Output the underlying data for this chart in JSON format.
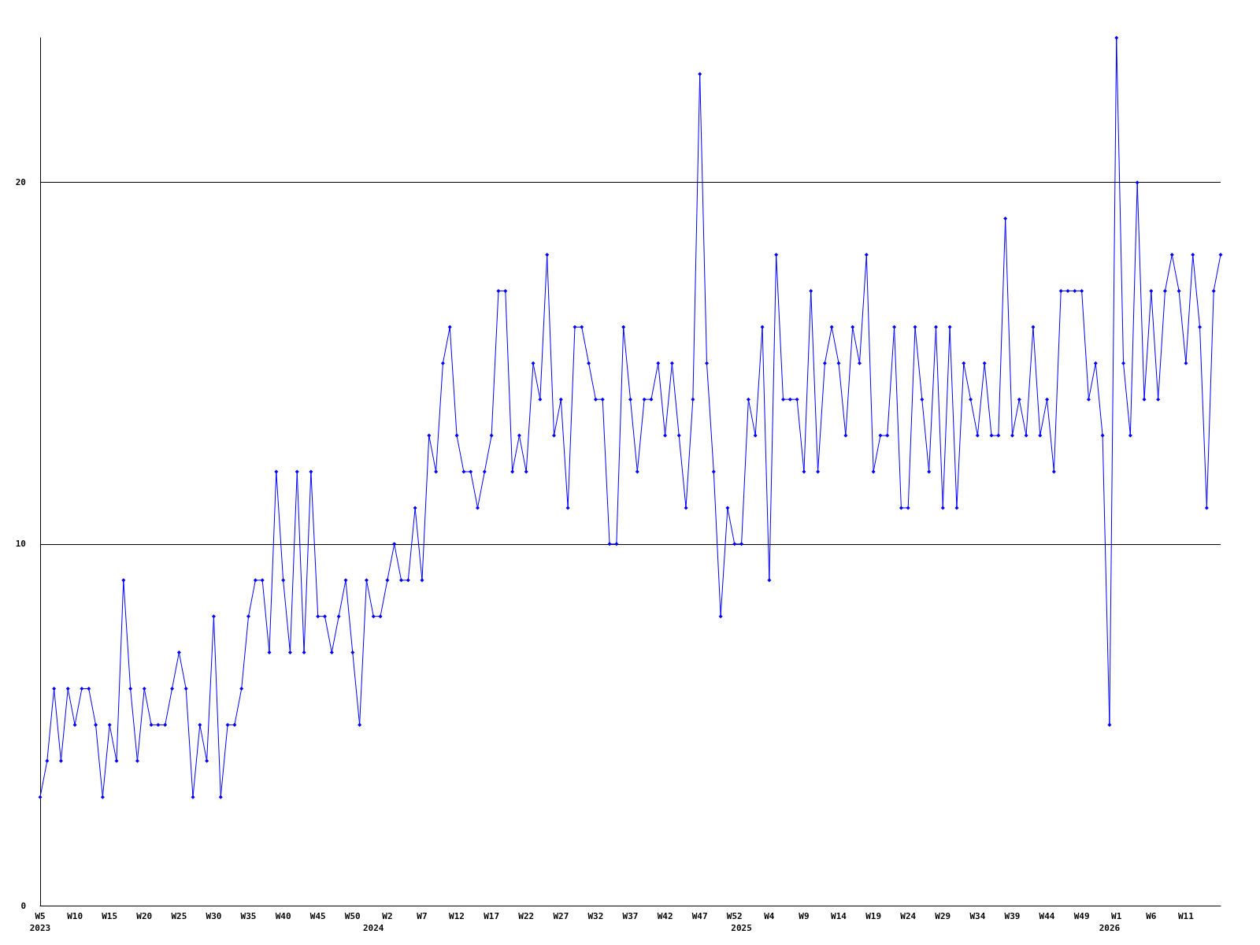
{
  "chart_data": {
    "type": "line",
    "categories": [
      "W5\n2023",
      null,
      null,
      null,
      null,
      "W10",
      null,
      null,
      null,
      null,
      "W15",
      null,
      null,
      null,
      null,
      "W20",
      null,
      null,
      null,
      null,
      "W25",
      null,
      null,
      null,
      null,
      "W30",
      null,
      null,
      null,
      null,
      "W35",
      null,
      null,
      null,
      null,
      "W40",
      null,
      null,
      null,
      null,
      "W45",
      null,
      null,
      null,
      null,
      "W50",
      null,
      null,
      "\n2024",
      null,
      "W2",
      null,
      null,
      null,
      null,
      "W7",
      null,
      null,
      null,
      null,
      "W12",
      null,
      null,
      null,
      null,
      "W17",
      null,
      null,
      null,
      null,
      "W22",
      null,
      null,
      null,
      null,
      "W27",
      null,
      null,
      null,
      null,
      "W32",
      null,
      null,
      null,
      null,
      "W37",
      null,
      null,
      null,
      null,
      "W42",
      null,
      null,
      null,
      null,
      "W47",
      null,
      null,
      null,
      null,
      "W52",
      "\n2025",
      null,
      null,
      null,
      "W4",
      null,
      null,
      null,
      null,
      "W9",
      null,
      null,
      null,
      null,
      "W14",
      null,
      null,
      null,
      null,
      "W19",
      null,
      null,
      null,
      null,
      "W24",
      null,
      null,
      null,
      null,
      "W29",
      null,
      null,
      null,
      null,
      "W34",
      null,
      null,
      null,
      null,
      "W39",
      null,
      null,
      null,
      null,
      "W44",
      null,
      null,
      null,
      null,
      "W49",
      null,
      null,
      null,
      "\n2026",
      "W1",
      null,
      null,
      null,
      null,
      "W6",
      null,
      null,
      null,
      null,
      "W11",
      null,
      null,
      null,
      null,
      null
    ],
    "series": [
      {
        "color": "#0000ff",
        "values": [
          3,
          4,
          6,
          4,
          6,
          5,
          6,
          6,
          5,
          3,
          5,
          4,
          9,
          6,
          4,
          6,
          5,
          5,
          5,
          6,
          7,
          6,
          3,
          5,
          4,
          8,
          3,
          5,
          5,
          6,
          8,
          9,
          9,
          7,
          12,
          9,
          7,
          12,
          7,
          12,
          8,
          8,
          7,
          8,
          9,
          7,
          5,
          9,
          8,
          8,
          9,
          10,
          9,
          9,
          11,
          9,
          13,
          12,
          15,
          16,
          13,
          12,
          12,
          11,
          12,
          13,
          17,
          17,
          12,
          13,
          12,
          15,
          14,
          18,
          13,
          14,
          11,
          16,
          16,
          15,
          14,
          14,
          10,
          10,
          16,
          14,
          12,
          14,
          14,
          15,
          13,
          15,
          13,
          11,
          14,
          23,
          15,
          12,
          8,
          11,
          10,
          10,
          14,
          13,
          16,
          9,
          18,
          14,
          14,
          14,
          12,
          17,
          12,
          15,
          16,
          15,
          13,
          16,
          15,
          18,
          12,
          13,
          13,
          16,
          11,
          11,
          16,
          14,
          12,
          16,
          11,
          16,
          11,
          15,
          14,
          13,
          15,
          13,
          13,
          19,
          13,
          14,
          13,
          16,
          13,
          14,
          12,
          17,
          17,
          17,
          17,
          14,
          15,
          13,
          5,
          24,
          15,
          13,
          20,
          14,
          17,
          14,
          17,
          18,
          17,
          15,
          18,
          16,
          11,
          17,
          18
        ]
      }
    ],
    "ylim": [
      0,
      24
    ],
    "yticks": [
      0,
      10,
      20
    ],
    "grid": "y",
    "marker": "diamond",
    "line_style": "solid"
  }
}
